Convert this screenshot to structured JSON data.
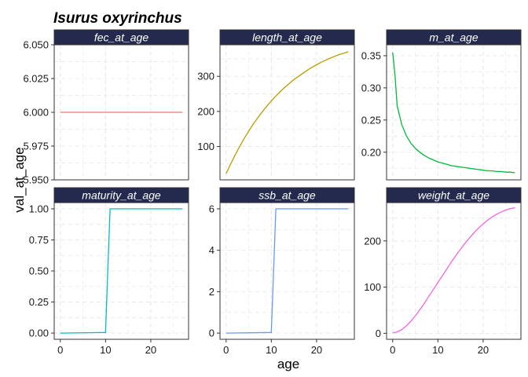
{
  "chart_data": {
    "type": "line",
    "title": "Isurus oxyrinchus",
    "xlabel": "age",
    "ylabel": "val_at_age",
    "grid": true,
    "colors": {
      "strip": "#232a4e",
      "grid": "#e6e6e6",
      "panel_border": "#333333"
    },
    "panels": [
      {
        "name": "fec_at_age",
        "color": "#f8766d",
        "xlim": [
          -1.35,
          28.35
        ],
        "ylim": [
          5.95,
          6.05
        ],
        "yticks": [
          5.95,
          5.975,
          6.0,
          6.025,
          6.05
        ],
        "ytick_labels": [
          "5.950",
          "5.975",
          "6.000",
          "6.025",
          "6.050"
        ],
        "xticks": [],
        "x": [
          0,
          27
        ],
        "y": [
          6.0,
          6.0
        ]
      },
      {
        "name": "length_at_age",
        "color": "#b79f00",
        "xlim": [
          -1.35,
          28.35
        ],
        "ylim": [
          5,
          390
        ],
        "yticks": [
          100,
          200,
          300
        ],
        "ytick_labels": [
          "100",
          "200",
          "300"
        ],
        "xticks": [],
        "x": [
          0,
          1,
          2,
          3,
          4,
          5,
          6,
          7,
          8,
          9,
          10,
          11,
          12,
          13,
          14,
          15,
          16,
          17,
          18,
          19,
          20,
          21,
          22,
          23,
          24,
          25,
          26,
          27
        ],
        "y": [
          23,
          50,
          76,
          100,
          123,
          144,
          164,
          182,
          199,
          215,
          230,
          244,
          257,
          269,
          280,
          291,
          300,
          309,
          318,
          326,
          333,
          340,
          346,
          352,
          357,
          362,
          366,
          370
        ]
      },
      {
        "name": "m_at_age",
        "color": "#00ba38",
        "xlim": [
          -1.35,
          28.35
        ],
        "ylim": [
          0.157,
          0.367
        ],
        "yticks": [
          0.2,
          0.25,
          0.3,
          0.35
        ],
        "ytick_labels": [
          "0.20",
          "0.25",
          "0.30",
          "0.35"
        ],
        "xticks": [],
        "x": [
          0,
          0.5,
          1,
          2,
          3,
          4,
          5,
          6,
          7,
          8,
          9,
          10,
          11,
          12,
          13,
          14,
          15,
          16,
          17,
          18,
          19,
          20,
          21,
          22,
          23,
          24,
          25,
          26,
          27
        ],
        "y": [
          0.355,
          0.32,
          0.272,
          0.243,
          0.226,
          0.214,
          0.206,
          0.2,
          0.195,
          0.191,
          0.188,
          0.185,
          0.183,
          0.181,
          0.179,
          0.178,
          0.177,
          0.176,
          0.175,
          0.174,
          0.173,
          0.172,
          0.171,
          0.171,
          0.17,
          0.17,
          0.169,
          0.169,
          0.168
        ]
      },
      {
        "name": "maturity_at_age",
        "color": "#00bfc4",
        "xlim": [
          -1.35,
          28.35
        ],
        "ylim": [
          -0.05,
          1.05
        ],
        "yticks": [
          0.0,
          0.25,
          0.5,
          0.75,
          1.0
        ],
        "ytick_labels": [
          "0.00",
          "0.25",
          "0.50",
          "0.75",
          "1.00"
        ],
        "xticks": [
          0,
          10,
          20
        ],
        "x": [
          0,
          10,
          11,
          27
        ],
        "y": [
          0,
          0.005,
          1,
          1
        ]
      },
      {
        "name": "ssb_at_age",
        "color": "#619cff",
        "xlim": [
          -1.35,
          28.35
        ],
        "ylim": [
          -0.3,
          6.3
        ],
        "yticks": [
          0,
          2,
          4,
          6
        ],
        "ytick_labels": [
          "0",
          "2",
          "4",
          "6"
        ],
        "xticks": [
          0,
          10,
          20
        ],
        "x": [
          0,
          10,
          11,
          27
        ],
        "y": [
          0,
          0.03,
          6,
          6
        ]
      },
      {
        "name": "weight_at_age",
        "color": "#f564e3",
        "xlim": [
          -1.35,
          28.35
        ],
        "ylim": [
          -13,
          283
        ],
        "yticks": [
          0,
          100,
          200
        ],
        "ytick_labels": [
          "0",
          "100",
          "200"
        ],
        "xticks": [
          0,
          10,
          20
        ],
        "x": [
          0,
          1,
          2,
          3,
          4,
          5,
          6,
          7,
          8,
          9,
          10,
          11,
          12,
          13,
          14,
          15,
          16,
          17,
          18,
          19,
          20,
          21,
          22,
          23,
          24,
          25,
          26,
          27
        ],
        "y": [
          1,
          3,
          8,
          16,
          26,
          38,
          51,
          65,
          80,
          95,
          110,
          125,
          140,
          155,
          169,
          182,
          195,
          207,
          218,
          228,
          237,
          245,
          252,
          258,
          263,
          267,
          270,
          272
        ]
      }
    ]
  }
}
